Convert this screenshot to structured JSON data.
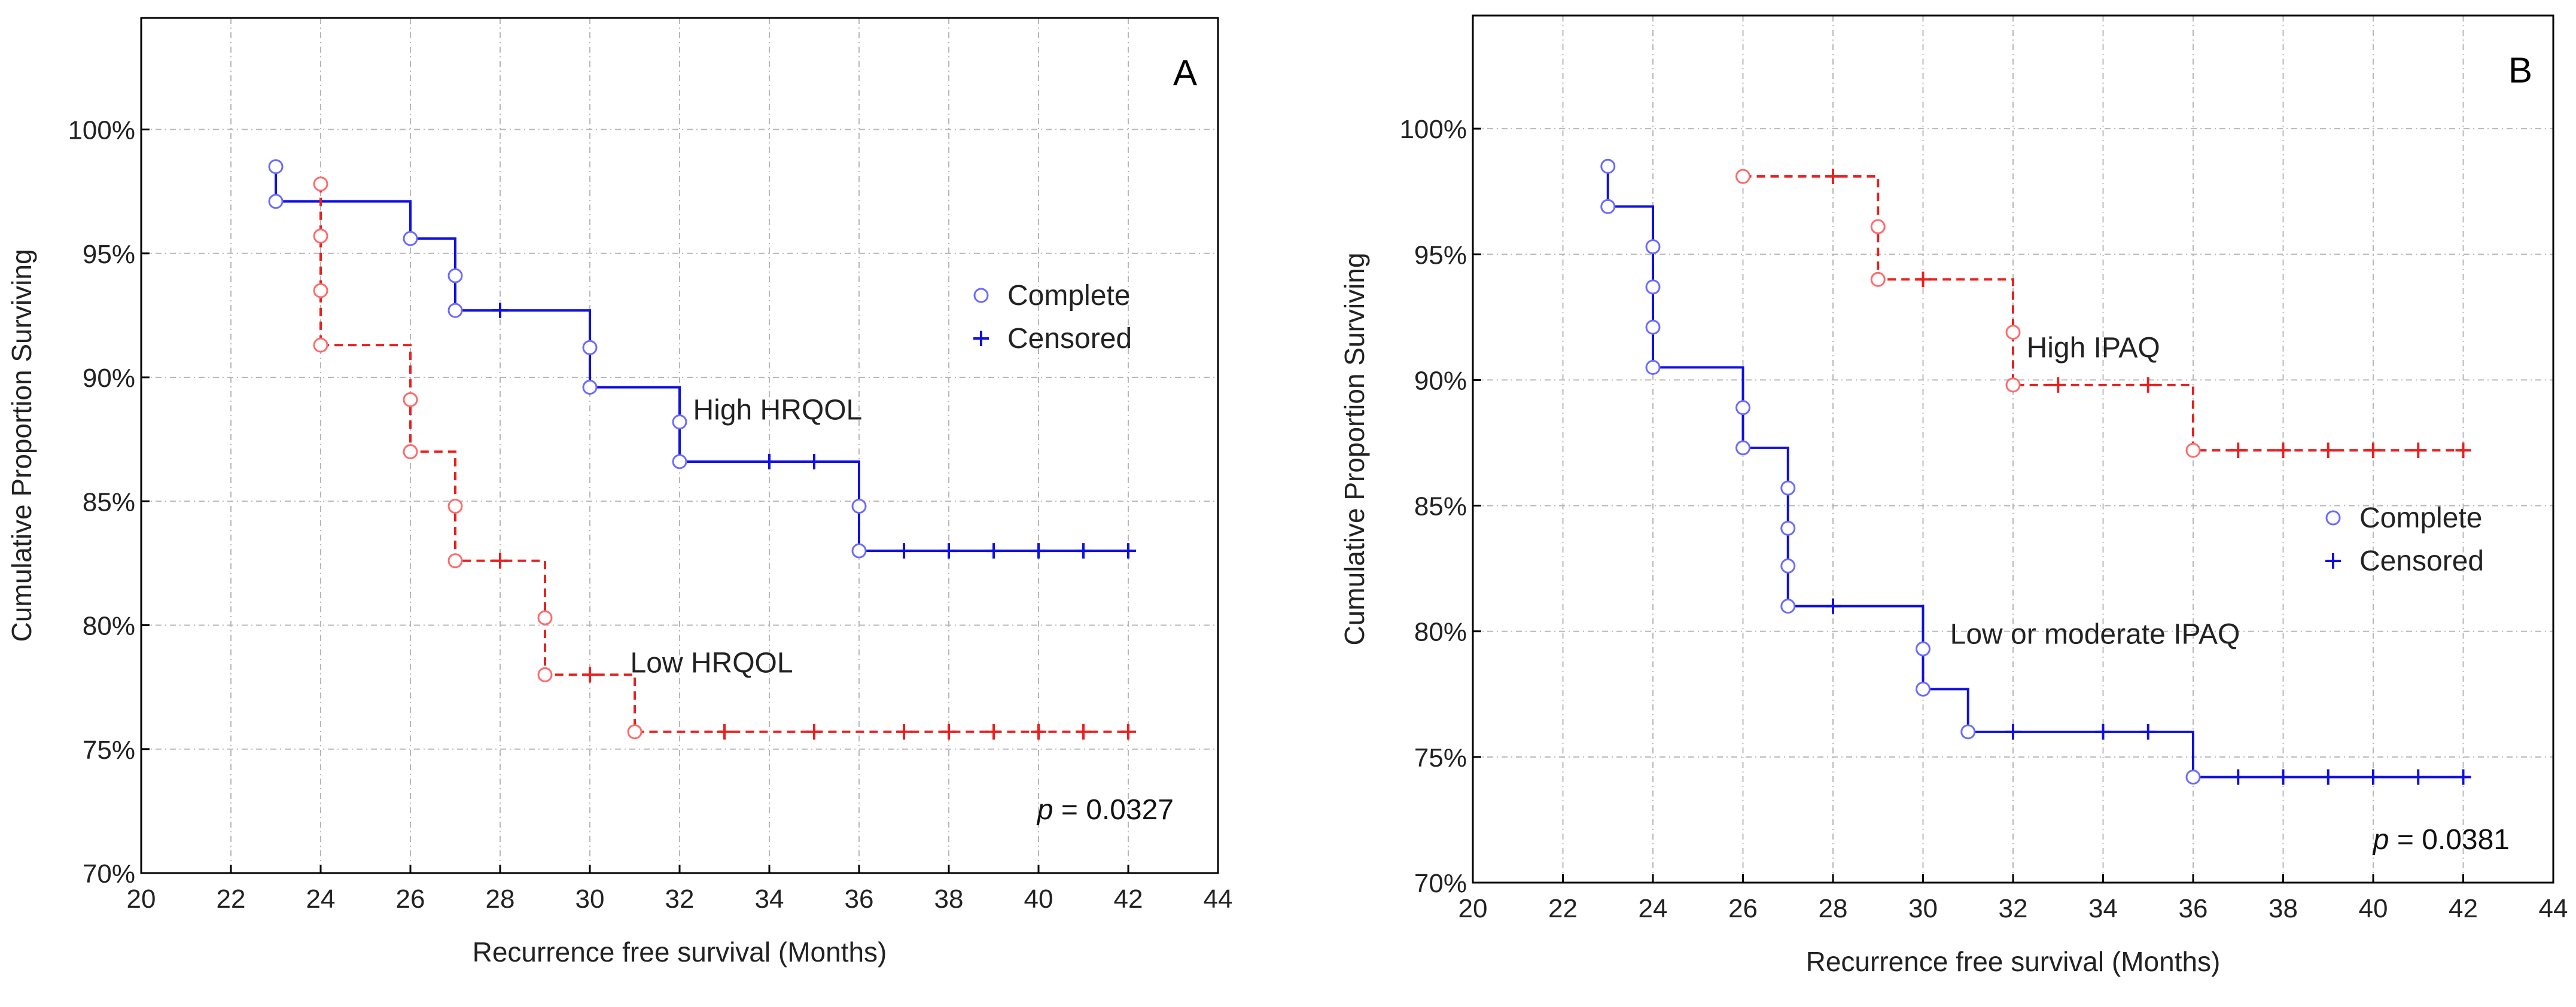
{
  "chart_data": [
    {
      "type": "line",
      "panel": "A",
      "xlabel": "Recurrence free survival (Months)",
      "ylabel": "Cumulative Proportion Surviving",
      "xlim": [
        20,
        44
      ],
      "ylim": [
        0.7,
        1.045
      ],
      "xticks": [
        "20",
        "22",
        "24",
        "26",
        "28",
        "30",
        "32",
        "34",
        "36",
        "38",
        "40",
        "42",
        "44"
      ],
      "yticks": [
        "70%",
        "75%",
        "80%",
        "85%",
        "90%",
        "95%",
        "100%"
      ],
      "grid": true,
      "legend": {
        "position": "right",
        "complete": "Complete",
        "censored": "Censored"
      },
      "p_value": {
        "prefix": "p",
        "text": " = 0.0327"
      },
      "series": [
        {
          "name": "High HRQOL",
          "color": "#1010e0",
          "dashed": false,
          "label_at": [
            32.3,
            0.883
          ],
          "steps": [
            [
              23,
              0.971
            ],
            [
              26,
              0.956
            ],
            [
              27,
              0.927
            ],
            [
              30,
              0.896
            ],
            [
              32,
              0.866
            ],
            [
              36,
              0.83
            ],
            [
              42,
              0.83
            ]
          ],
          "complete": [
            [
              23,
              0.985
            ],
            [
              23,
              0.971
            ],
            [
              26,
              0.956
            ],
            [
              27,
              0.941
            ],
            [
              27,
              0.927
            ],
            [
              30,
              0.912
            ],
            [
              30,
              0.896
            ],
            [
              32,
              0.882
            ],
            [
              32,
              0.866
            ],
            [
              36,
              0.848
            ],
            [
              36,
              0.83
            ]
          ],
          "censored": [
            [
              28,
              0.927
            ],
            [
              34,
              0.866
            ],
            [
              35,
              0.866
            ],
            [
              37,
              0.83
            ],
            [
              38,
              0.83
            ],
            [
              39,
              0.83
            ],
            [
              40,
              0.83
            ],
            [
              41,
              0.83
            ],
            [
              42,
              0.83
            ]
          ]
        },
        {
          "name": "Low HRQOL",
          "color": "#e82020",
          "dashed": true,
          "label_at": [
            30.9,
            0.781
          ],
          "steps": [
            [
              24,
              0.913
            ],
            [
              26,
              0.87
            ],
            [
              27,
              0.826
            ],
            [
              29,
              0.78
            ],
            [
              31,
              0.757
            ],
            [
              42,
              0.757
            ]
          ],
          "complete": [
            [
              24,
              0.978
            ],
            [
              24,
              0.957
            ],
            [
              24,
              0.935
            ],
            [
              24,
              0.913
            ],
            [
              26,
              0.891
            ],
            [
              26,
              0.87
            ],
            [
              27,
              0.848
            ],
            [
              27,
              0.826
            ],
            [
              29,
              0.803
            ],
            [
              29,
              0.78
            ],
            [
              31,
              0.757
            ]
          ],
          "censored": [
            [
              28,
              0.826
            ],
            [
              30,
              0.78
            ],
            [
              33,
              0.757
            ],
            [
              35,
              0.757
            ],
            [
              37,
              0.757
            ],
            [
              38,
              0.757
            ],
            [
              39,
              0.757
            ],
            [
              40,
              0.757
            ],
            [
              41,
              0.757
            ],
            [
              42,
              0.757
            ]
          ]
        }
      ]
    },
    {
      "type": "line",
      "panel": "B",
      "xlabel": "Recurrence free survival (Months)",
      "ylabel": "Cumulative Proportion Surviving",
      "xlim": [
        20,
        44
      ],
      "ylim": [
        0.7,
        1.045
      ],
      "xticks": [
        "20",
        "22",
        "24",
        "26",
        "28",
        "30",
        "32",
        "34",
        "36",
        "38",
        "40",
        "42",
        "44"
      ],
      "yticks": [
        "70%",
        "75%",
        "80%",
        "85%",
        "90%",
        "95%",
        "100%"
      ],
      "grid": true,
      "legend": {
        "position": "right",
        "complete": "Complete",
        "censored": "Censored"
      },
      "p_value": {
        "prefix": "p",
        "text": " = 0.0381"
      },
      "series": [
        {
          "name": "High IPAQ",
          "color": "#e82020",
          "dashed": true,
          "label_at": [
            32.3,
            0.909
          ],
          "steps": [
            [
              26,
              0.981
            ],
            [
              29,
              0.94
            ],
            [
              32,
              0.898
            ],
            [
              36,
              0.872
            ],
            [
              42,
              0.872
            ]
          ],
          "complete": [
            [
              26,
              0.981
            ],
            [
              29,
              0.961
            ],
            [
              29,
              0.94
            ],
            [
              32,
              0.919
            ],
            [
              32,
              0.898
            ],
            [
              36,
              0.872
            ]
          ],
          "censored": [
            [
              28,
              0.981
            ],
            [
              30,
              0.94
            ],
            [
              33,
              0.898
            ],
            [
              35,
              0.898
            ],
            [
              37,
              0.872
            ],
            [
              38,
              0.872
            ],
            [
              39,
              0.872
            ],
            [
              40,
              0.872
            ],
            [
              41,
              0.872
            ],
            [
              42,
              0.872
            ]
          ]
        },
        {
          "name": "Low or moderate IPAQ",
          "color": "#1010e0",
          "dashed": false,
          "label_at": [
            30.6,
            0.795
          ],
          "steps": [
            [
              23,
              0.969
            ],
            [
              24,
              0.905
            ],
            [
              26,
              0.873
            ],
            [
              27,
              0.81
            ],
            [
              30,
              0.777
            ],
            [
              31,
              0.76
            ],
            [
              36,
              0.742
            ],
            [
              42,
              0.742
            ]
          ],
          "complete": [
            [
              23,
              0.985
            ],
            [
              23,
              0.969
            ],
            [
              24,
              0.953
            ],
            [
              24,
              0.937
            ],
            [
              24,
              0.921
            ],
            [
              24,
              0.905
            ],
            [
              26,
              0.889
            ],
            [
              26,
              0.873
            ],
            [
              27,
              0.857
            ],
            [
              27,
              0.841
            ],
            [
              27,
              0.826
            ],
            [
              27,
              0.81
            ],
            [
              30,
              0.793
            ],
            [
              30,
              0.777
            ],
            [
              31,
              0.76
            ],
            [
              36,
              0.742
            ]
          ],
          "censored": [
            [
              28,
              0.81
            ],
            [
              32,
              0.76
            ],
            [
              34,
              0.76
            ],
            [
              35,
              0.76
            ],
            [
              37,
              0.742
            ],
            [
              38,
              0.742
            ],
            [
              39,
              0.742
            ],
            [
              40,
              0.742
            ],
            [
              41,
              0.742
            ],
            [
              42,
              0.742
            ]
          ]
        }
      ]
    }
  ]
}
